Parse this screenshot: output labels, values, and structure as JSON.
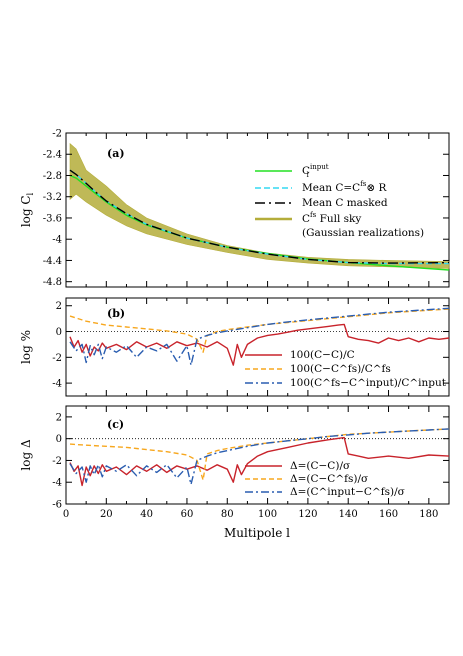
{
  "figure": {
    "xlabel": "Multipole l",
    "x_ticks": [
      "0",
      "20",
      "40",
      "60",
      "80",
      "100",
      "120",
      "140",
      "160",
      "180"
    ]
  },
  "colors": {
    "green": "#22e022",
    "cyan": "#33d9f2",
    "black": "#000000",
    "olive": "#b4ad3a",
    "red": "#c8232b",
    "orange": "#f7a71e",
    "blue": "#2a5db0"
  },
  "chart_data": [
    {
      "type": "line",
      "panel": "(a)",
      "ylabel": "log C",
      "ylabel_sub": "l",
      "xlim": [
        0,
        190
      ],
      "ylim": [
        -4.9,
        -2.0
      ],
      "y_ticks": [
        "-2",
        "-2.4",
        "-2.8",
        "-3.2",
        "-3.6",
        "-4",
        "-4.4",
        "-4.8"
      ],
      "legend_placement": "top-right",
      "band": {
        "name_lines": [
          "C",
          "fs",
          " Full sky",
          "(Gaussian realizations)"
        ],
        "color": "#b4ad3a",
        "x": [
          2,
          5,
          10,
          20,
          30,
          40,
          60,
          80,
          100,
          120,
          140,
          160,
          190
        ],
        "lower": [
          -3.25,
          -3.15,
          -3.3,
          -3.55,
          -3.75,
          -3.9,
          -4.1,
          -4.25,
          -4.38,
          -4.45,
          -4.5,
          -4.52,
          -4.55
        ],
        "upper": [
          -2.2,
          -2.3,
          -2.7,
          -3.0,
          -3.35,
          -3.6,
          -3.9,
          -4.12,
          -4.26,
          -4.34,
          -4.38,
          -4.4,
          -4.42
        ]
      },
      "series": [
        {
          "name": "C",
          "name_sup": "input",
          "name_sub": "l",
          "color": "#22e022",
          "dash": "solid",
          "x": [
            2,
            5,
            10,
            15,
            20,
            30,
            40,
            60,
            80,
            100,
            120,
            140,
            160,
            190
          ],
          "y": [
            -2.8,
            -2.85,
            -3.0,
            -3.15,
            -3.3,
            -3.55,
            -3.73,
            -3.98,
            -4.15,
            -4.27,
            -4.37,
            -4.44,
            -4.5,
            -4.58
          ]
        },
        {
          "name": "Mean C",
          "name_rest": "=C",
          "name_sup2": "fs",
          "name_tail": "⊗ R",
          "color": "#33d9f2",
          "dash": "6 3",
          "x": [
            2,
            5,
            10,
            15,
            20,
            30,
            40,
            60,
            80,
            100,
            120,
            140,
            160,
            190
          ],
          "y": [
            -2.7,
            -2.78,
            -2.95,
            -3.12,
            -3.28,
            -3.52,
            -3.72,
            -3.98,
            -4.15,
            -4.28,
            -4.38,
            -4.44,
            -4.46,
            -4.46
          ]
        },
        {
          "name": "Mean C",
          "name_tail": " masked",
          "color": "#000000",
          "dash": "10 4 2 4",
          "x": [
            2,
            5,
            10,
            15,
            20,
            30,
            40,
            60,
            80,
            100,
            120,
            140,
            160,
            190
          ],
          "y": [
            -2.7,
            -2.78,
            -2.95,
            -3.12,
            -3.28,
            -3.52,
            -3.72,
            -3.98,
            -4.15,
            -4.28,
            -4.38,
            -4.44,
            -4.45,
            -4.44
          ]
        }
      ]
    },
    {
      "type": "line",
      "panel": "(b)",
      "ylabel": "log %",
      "xlim": [
        0,
        190
      ],
      "ylim": [
        -5,
        2.6
      ],
      "y_ticks": [
        "2",
        "0",
        "-2",
        "-4"
      ],
      "reference_line": 0,
      "legend_placement": "bottom-right",
      "series": [
        {
          "name": "100(C−C)/C",
          "color": "#c8232b",
          "dash": "solid",
          "x": [
            2,
            4,
            6,
            8,
            10,
            12,
            14,
            16,
            18,
            20,
            25,
            30,
            35,
            40,
            45,
            50,
            55,
            60,
            65,
            70,
            75,
            80,
            83,
            85,
            87,
            90,
            95,
            100,
            105,
            110,
            115,
            120,
            125,
            130,
            135,
            138,
            140,
            145,
            150,
            155,
            160,
            165,
            170,
            175,
            180,
            185,
            190
          ],
          "y": [
            -0.4,
            -1.2,
            -0.7,
            -1.6,
            -1.0,
            -1.9,
            -1.2,
            -1.5,
            -0.9,
            -1.3,
            -1.0,
            -1.4,
            -0.8,
            -1.2,
            -0.9,
            -1.3,
            -0.8,
            -1.1,
            -0.9,
            -1.2,
            -0.8,
            -1.3,
            -2.6,
            -1.0,
            -2.0,
            -1.0,
            -0.5,
            -0.3,
            -0.2,
            -0.05,
            0.1,
            0.2,
            0.3,
            0.4,
            0.5,
            0.55,
            -0.4,
            -0.6,
            -0.7,
            -0.9,
            -0.5,
            -0.7,
            -0.5,
            -0.8,
            -0.5,
            -0.6,
            -0.5
          ]
        },
        {
          "name": "100(C−C^fs)/C^fs",
          "color": "#f7a71e",
          "dash": "5 3",
          "x": [
            2,
            10,
            20,
            30,
            40,
            50,
            60,
            65,
            68,
            70,
            75,
            80,
            90,
            100,
            110,
            120,
            130,
            140,
            150,
            160,
            170,
            180,
            190
          ],
          "y": [
            1.2,
            0.8,
            0.5,
            0.35,
            0.2,
            0.05,
            -0.2,
            -0.6,
            -1.6,
            -0.3,
            0.0,
            0.15,
            0.35,
            0.55,
            0.7,
            0.85,
            1.0,
            1.15,
            1.3,
            1.45,
            1.55,
            1.65,
            1.75
          ]
        },
        {
          "name": "100(C^fs−C^input)/C^input",
          "color": "#2a5db0",
          "dash": "8 3 2 3",
          "x": [
            2,
            5,
            8,
            10,
            12,
            14,
            16,
            18,
            20,
            25,
            30,
            35,
            40,
            45,
            50,
            55,
            60,
            62,
            65,
            70,
            75,
            80,
            90,
            100,
            110,
            120,
            130,
            140,
            150,
            160,
            170,
            180,
            190
          ],
          "y": [
            -0.8,
            -1.5,
            -1.0,
            -2.4,
            -1.1,
            -1.8,
            -1.0,
            -2.1,
            -1.2,
            -1.6,
            -1.1,
            -2.0,
            -1.2,
            -1.5,
            -1.0,
            -2.3,
            -1.1,
            -2.6,
            -0.6,
            -0.3,
            -0.1,
            0.05,
            0.3,
            0.55,
            0.75,
            0.9,
            1.05,
            1.2,
            1.35,
            1.5,
            1.6,
            1.7,
            1.8
          ]
        }
      ]
    },
    {
      "type": "line",
      "panel": "(c)",
      "ylabel": "log Δ",
      "xlim": [
        0,
        190
      ],
      "ylim": [
        -6,
        3
      ],
      "y_ticks": [
        "2",
        "0",
        "-2",
        "-4",
        "-6"
      ],
      "reference_line": 0,
      "legend_placement": "bottom-right",
      "series": [
        {
          "name": "Δ=(C−C)/σ",
          "color": "#c8232b",
          "dash": "solid",
          "x": [
            2,
            4,
            6,
            8,
            10,
            12,
            14,
            16,
            18,
            20,
            25,
            30,
            35,
            40,
            45,
            50,
            55,
            60,
            65,
            70,
            75,
            80,
            83,
            85,
            87,
            90,
            95,
            100,
            110,
            120,
            130,
            138,
            140,
            145,
            150,
            160,
            170,
            180,
            190
          ],
          "y": [
            -2.2,
            -3.0,
            -2.5,
            -4.3,
            -2.6,
            -3.4,
            -2.5,
            -3.2,
            -2.4,
            -3.0,
            -2.6,
            -3.3,
            -2.5,
            -3.0,
            -2.4,
            -3.1,
            -2.5,
            -2.8,
            -2.5,
            -2.9,
            -2.4,
            -2.8,
            -4.0,
            -2.4,
            -3.3,
            -2.3,
            -1.6,
            -1.2,
            -0.8,
            -0.4,
            -0.1,
            0.1,
            -1.4,
            -1.6,
            -1.8,
            -1.6,
            -1.8,
            -1.5,
            -1.6
          ]
        },
        {
          "name": "Δ=(C−C^fs)/σ",
          "color": "#f7a71e",
          "dash": "5 3",
          "x": [
            2,
            10,
            20,
            30,
            40,
            50,
            60,
            65,
            68,
            70,
            75,
            80,
            90,
            100,
            110,
            120,
            130,
            140,
            150,
            160,
            170,
            180,
            190
          ],
          "y": [
            -0.5,
            -0.6,
            -0.7,
            -0.8,
            -1.0,
            -1.2,
            -1.5,
            -2.0,
            -3.8,
            -1.4,
            -1.1,
            -0.9,
            -0.6,
            -0.4,
            -0.2,
            0.0,
            0.2,
            0.4,
            0.5,
            0.6,
            0.7,
            0.8,
            0.9
          ]
        },
        {
          "name": "Δ=(C^input−C^fs)/σ",
          "color": "#2a5db0",
          "dash": "8 3 2 3",
          "x": [
            2,
            5,
            8,
            10,
            12,
            14,
            16,
            18,
            20,
            25,
            30,
            35,
            40,
            45,
            50,
            55,
            60,
            62,
            65,
            70,
            75,
            80,
            90,
            100,
            110,
            120,
            130,
            140,
            150,
            160,
            170,
            180,
            190
          ],
          "y": [
            -2.3,
            -3.2,
            -2.6,
            -4.0,
            -2.5,
            -3.3,
            -2.4,
            -3.5,
            -2.5,
            -3.0,
            -2.4,
            -3.4,
            -2.5,
            -3.1,
            -2.4,
            -3.6,
            -2.6,
            -4.2,
            -2.0,
            -1.6,
            -1.3,
            -1.1,
            -0.7,
            -0.4,
            -0.2,
            0.0,
            0.2,
            0.35,
            0.5,
            0.6,
            0.7,
            0.8,
            0.9
          ]
        }
      ]
    }
  ]
}
